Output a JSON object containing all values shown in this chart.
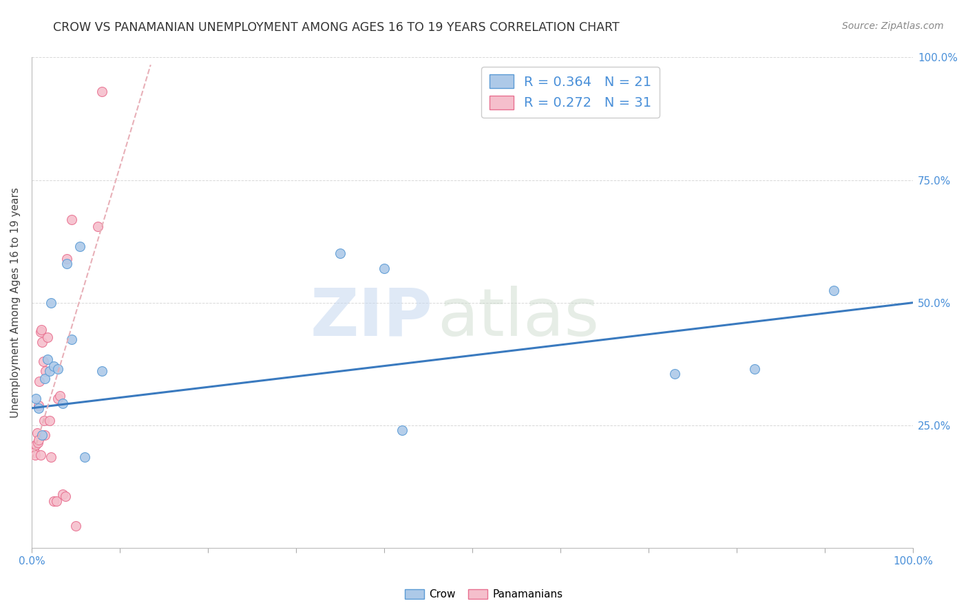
{
  "title": "CROW VS PANAMANIAN UNEMPLOYMENT AMONG AGES 16 TO 19 YEARS CORRELATION CHART",
  "source": "Source: ZipAtlas.com",
  "ylabel": "Unemployment Among Ages 16 to 19 years",
  "xlim": [
    0,
    1
  ],
  "ylim": [
    0,
    1
  ],
  "xtick_positions": [
    0.0,
    0.1,
    0.2,
    0.3,
    0.4,
    0.5,
    0.6,
    0.7,
    0.8,
    0.9,
    1.0
  ],
  "xtick_labels_show": {
    "0.0": "0.0%",
    "0.5": "",
    "1.0": "100.0%"
  },
  "ytick_positions": [
    0.0,
    0.25,
    0.5,
    0.75,
    1.0
  ],
  "ytick_labels": [
    "",
    "25.0%",
    "50.0%",
    "75.0%",
    "100.0%"
  ],
  "crow_color": "#adc9e8",
  "pana_color": "#f5bfcc",
  "crow_edge_color": "#5b9bd5",
  "pana_edge_color": "#e87090",
  "crow_line_color": "#3a7abf",
  "pana_line_color": "#e87090",
  "pana_dash_color": "#e8b0b8",
  "legend_crow_label": "R = 0.364   N = 21",
  "legend_pana_label": "R = 0.272   N = 31",
  "crow_scatter_x": [
    0.005,
    0.008,
    0.012,
    0.015,
    0.018,
    0.02,
    0.022,
    0.025,
    0.03,
    0.035,
    0.04,
    0.045,
    0.055,
    0.06,
    0.08,
    0.35,
    0.4,
    0.42,
    0.73,
    0.82,
    0.91
  ],
  "crow_scatter_y": [
    0.305,
    0.285,
    0.23,
    0.345,
    0.385,
    0.36,
    0.5,
    0.37,
    0.365,
    0.295,
    0.58,
    0.425,
    0.615,
    0.185,
    0.36,
    0.6,
    0.57,
    0.24,
    0.355,
    0.365,
    0.525
  ],
  "pana_scatter_x": [
    0.002,
    0.003,
    0.004,
    0.005,
    0.006,
    0.007,
    0.008,
    0.008,
    0.009,
    0.01,
    0.01,
    0.011,
    0.012,
    0.013,
    0.014,
    0.015,
    0.016,
    0.018,
    0.02,
    0.022,
    0.025,
    0.028,
    0.03,
    0.032,
    0.035,
    0.038,
    0.04,
    0.045,
    0.05,
    0.075,
    0.08
  ],
  "pana_scatter_y": [
    0.2,
    0.195,
    0.19,
    0.21,
    0.235,
    0.215,
    0.22,
    0.29,
    0.34,
    0.19,
    0.44,
    0.445,
    0.42,
    0.38,
    0.26,
    0.23,
    0.36,
    0.43,
    0.26,
    0.185,
    0.095,
    0.095,
    0.305,
    0.31,
    0.11,
    0.105,
    0.59,
    0.67,
    0.045,
    0.655,
    0.93
  ],
  "crow_trend_x": [
    0.0,
    1.0
  ],
  "crow_trend_y": [
    0.285,
    0.5
  ],
  "pana_trend_x": [
    -0.005,
    0.135
  ],
  "pana_trend_y": [
    0.15,
    0.985
  ],
  "watermark_zip": "ZIP",
  "watermark_atlas": "atlas",
  "background_color": "#ffffff",
  "grid_color": "#d8d8d8",
  "title_color": "#333333",
  "source_color": "#888888",
  "axis_label_color": "#444444",
  "tick_color": "#4a90d9",
  "marker_size": 100,
  "legend_text_color": "#4a90d9",
  "bottom_legend_crow": "Crow",
  "bottom_legend_pana": "Panamanians"
}
